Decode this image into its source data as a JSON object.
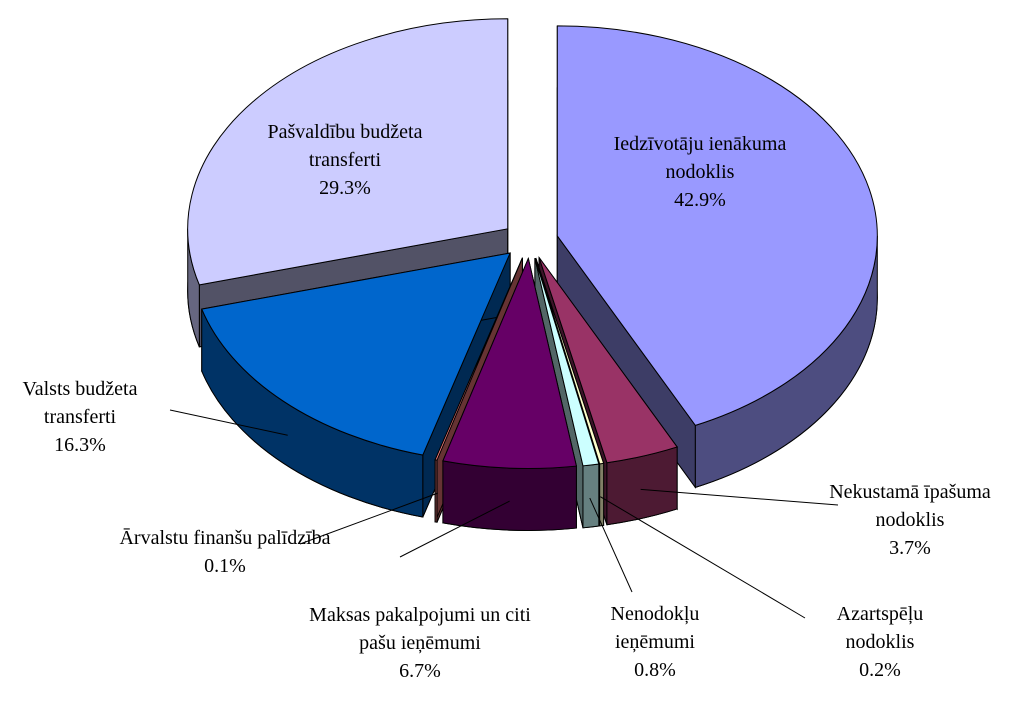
{
  "chart_data": {
    "type": "pie3d",
    "categories": [
      "Iedzīvotāju ienākuma nodoklis",
      "Nekustamā īpašuma nodoklis",
      "Azartspēļu nodoklis",
      "Nenodokļu ieņēmumi",
      "Maksas pakalpojumi un citi pašu ieņēmumi",
      "Ārvalstu finanšu palīdzība",
      "Valsts budžeta transferti",
      "Pašvaldību budžeta transferti"
    ],
    "values": [
      42.9,
      3.7,
      0.2,
      0.8,
      6.7,
      0.1,
      16.3,
      29.3
    ],
    "value_labels": [
      "42.9%",
      "3.7%",
      "0.2%",
      "0.8%",
      "6.7%",
      "0.1%",
      "16.3%",
      "29.3%"
    ],
    "colors": [
      "#9999ff",
      "#993366",
      "#ffffcc",
      "#ccffff",
      "#660066",
      "#ff8080",
      "#0066cc",
      "#ccccff"
    ]
  }
}
